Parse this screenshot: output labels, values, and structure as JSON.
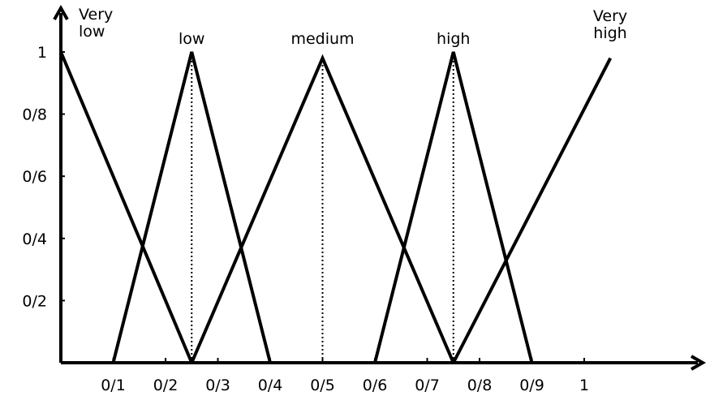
{
  "chart_data": {
    "type": "line",
    "title": "",
    "xlabel": "",
    "ylabel": "",
    "xlim": [
      0,
      1.05
    ],
    "ylim": [
      0,
      1.05
    ],
    "x_ticks": [
      {
        "value": 0.1,
        "label": "0/1"
      },
      {
        "value": 0.2,
        "label": "0/2"
      },
      {
        "value": 0.3,
        "label": "0/3"
      },
      {
        "value": 0.4,
        "label": "0/4"
      },
      {
        "value": 0.5,
        "label": "0/5"
      },
      {
        "value": 0.6,
        "label": "0/6"
      },
      {
        "value": 0.7,
        "label": "0/7"
      },
      {
        "value": 0.8,
        "label": "0/8"
      },
      {
        "value": 0.9,
        "label": "0/9"
      },
      {
        "value": 1.0,
        "label": "1"
      }
    ],
    "y_ticks": [
      {
        "value": 0.2,
        "label": "0/2"
      },
      {
        "value": 0.4,
        "label": "0/4"
      },
      {
        "value": 0.6,
        "label": "0/6"
      },
      {
        "value": 0.8,
        "label": "0/8"
      },
      {
        "value": 1.0,
        "label": "1"
      }
    ],
    "series": [
      {
        "name": "Very low",
        "x": [
          0.0,
          0.25
        ],
        "y": [
          1.0,
          0.0
        ],
        "label_lines": [
          "Very",
          "low"
        ]
      },
      {
        "name": "low",
        "x": [
          0.1,
          0.25,
          0.4
        ],
        "y": [
          0.0,
          1.0,
          0.0
        ],
        "label_lines": [
          "low"
        ]
      },
      {
        "name": "medium",
        "x": [
          0.25,
          0.5,
          0.75
        ],
        "y": [
          0.0,
          0.98,
          0.0
        ],
        "label_lines": [
          "medium"
        ]
      },
      {
        "name": "high",
        "x": [
          0.6,
          0.75,
          0.9
        ],
        "y": [
          0.0,
          1.0,
          0.0
        ],
        "label_lines": [
          "high"
        ]
      },
      {
        "name": "Very high",
        "x": [
          0.75,
          1.05
        ],
        "y": [
          0.0,
          0.98
        ],
        "label_lines": [
          "Very",
          "high"
        ]
      }
    ],
    "peak_guides": [
      0.25,
      0.5,
      0.75
    ]
  }
}
